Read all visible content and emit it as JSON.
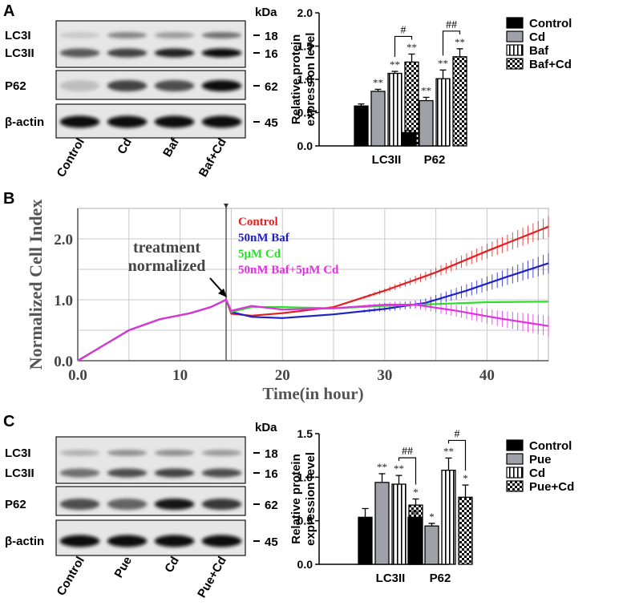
{
  "panel_labels": {
    "a": "A",
    "b": "B",
    "c": "C"
  },
  "colors": {
    "control": "#000000",
    "cd_gray": "#a0a0a8",
    "red": "#e02020",
    "blue": "#2020c8",
    "green": "#28e028",
    "magenta": "#e030e0",
    "grid": "#c8c8c8"
  },
  "blots": {
    "A": {
      "kda_label": "kDa",
      "lanes": [
        "Control",
        "Cd",
        "Baf",
        "Baf+Cd"
      ],
      "proteins": [
        "LC3I",
        "LC3II",
        "P62",
        "β-actin"
      ],
      "markers": [
        "18",
        "16",
        "62",
        "45"
      ],
      "intensities": {
        "LC3I": [
          0.15,
          0.45,
          0.35,
          0.55
        ],
        "LC3II": [
          0.65,
          0.75,
          0.9,
          1.0
        ],
        "P62": [
          0.2,
          0.75,
          0.7,
          1.0
        ],
        "beta_actin": [
          1.0,
          1.0,
          1.0,
          1.0
        ]
      }
    },
    "C": {
      "kda_label": "kDa",
      "lanes": [
        "Control",
        "Pue",
        "Cd",
        "Pue+Cd"
      ],
      "proteins": [
        "LC3I",
        "LC3II",
        "P62",
        "β-actin"
      ],
      "markers": [
        "18",
        "16",
        "62",
        "45"
      ],
      "intensities": {
        "LC3I": [
          0.25,
          0.4,
          0.4,
          0.35
        ],
        "LC3II": [
          0.55,
          0.7,
          0.75,
          0.7
        ],
        "P62": [
          0.7,
          0.6,
          0.95,
          0.8
        ],
        "beta_actin": [
          1.0,
          1.0,
          1.0,
          1.0
        ]
      }
    }
  },
  "chart_data": [
    {
      "id": "A-bar",
      "type": "bar",
      "ylabel": "Relative protein expression level",
      "ylim": [
        0,
        2.0
      ],
      "yticks": [
        "0.0",
        "0.5",
        "1.0",
        "1.5",
        "2.0"
      ],
      "categories": [
        "LC3II",
        "P62"
      ],
      "series": [
        {
          "name": "Control",
          "pattern": "solid-black",
          "values": [
            0.6,
            0.2
          ],
          "errors": [
            0.03,
            0.03
          ],
          "marks": [
            "",
            ""
          ]
        },
        {
          "name": "Cd",
          "pattern": "solid-gray",
          "values": [
            0.82,
            0.68
          ],
          "errors": [
            0.03,
            0.05
          ],
          "marks": [
            "**",
            "**"
          ]
        },
        {
          "name": "Baf",
          "pattern": "vertical-stripes",
          "values": [
            1.09,
            1.01
          ],
          "errors": [
            0.03,
            0.13
          ],
          "marks": [
            "**",
            "**"
          ]
        },
        {
          "name": "Baf+Cd",
          "pattern": "checker",
          "values": [
            1.26,
            1.34
          ],
          "errors": [
            0.12,
            0.12
          ],
          "marks": [
            "**",
            "**"
          ]
        }
      ],
      "brackets": [
        {
          "label": "#"
        },
        {
          "label": "##"
        }
      ]
    },
    {
      "id": "B-line",
      "type": "line",
      "xlabel": "Time(in hour)",
      "ylabel": "Normalized Cell Index",
      "xlim": [
        0,
        46
      ],
      "ylim": [
        0,
        2.5
      ],
      "xticks": [
        "0.0",
        "10",
        "20",
        "30",
        "40"
      ],
      "yticks": [
        "0.0",
        "1.0",
        "2.0"
      ],
      "normalization_time": 14.5,
      "annotation": "treatment normalized",
      "annotation_lines": [
        "treatment",
        "normalized"
      ],
      "series": [
        {
          "name": "Control",
          "points": [
            [
              0,
              0
            ],
            [
              2,
              0.2
            ],
            [
              5,
              0.5
            ],
            [
              8,
              0.68
            ],
            [
              11,
              0.78
            ],
            [
              13,
              0.88
            ],
            [
              14.5,
              1.0
            ],
            [
              15,
              0.77
            ],
            [
              17,
              0.74
            ],
            [
              20,
              0.78
            ],
            [
              25,
              0.88
            ],
            [
              30,
              1.15
            ],
            [
              35,
              1.45
            ],
            [
              40,
              1.8
            ],
            [
              46,
              2.2
            ]
          ]
        },
        {
          "name": "50nM Baf",
          "points": [
            [
              0,
              0
            ],
            [
              2,
              0.2
            ],
            [
              5,
              0.5
            ],
            [
              8,
              0.68
            ],
            [
              11,
              0.78
            ],
            [
              13,
              0.88
            ],
            [
              14.5,
              1.0
            ],
            [
              15,
              0.8
            ],
            [
              17,
              0.72
            ],
            [
              20,
              0.7
            ],
            [
              25,
              0.76
            ],
            [
              30,
              0.85
            ],
            [
              34,
              0.95
            ],
            [
              38,
              1.15
            ],
            [
              42,
              1.38
            ],
            [
              46,
              1.6
            ]
          ]
        },
        {
          "name": "5μM Cd",
          "points": [
            [
              0,
              0
            ],
            [
              2,
              0.2
            ],
            [
              5,
              0.5
            ],
            [
              8,
              0.68
            ],
            [
              11,
              0.78
            ],
            [
              13,
              0.88
            ],
            [
              14.5,
              1.0
            ],
            [
              15,
              0.8
            ],
            [
              17,
              0.88
            ],
            [
              20,
              0.88
            ],
            [
              25,
              0.86
            ],
            [
              30,
              0.9
            ],
            [
              35,
              0.93
            ],
            [
              40,
              0.96
            ],
            [
              46,
              0.97
            ]
          ]
        },
        {
          "name": "50nM Baf+5μM Cd",
          "points": [
            [
              0,
              0
            ],
            [
              2,
              0.2
            ],
            [
              5,
              0.5
            ],
            [
              8,
              0.68
            ],
            [
              11,
              0.78
            ],
            [
              13,
              0.88
            ],
            [
              14.5,
              1.0
            ],
            [
              15,
              0.82
            ],
            [
              17,
              0.9
            ],
            [
              20,
              0.84
            ],
            [
              25,
              0.86
            ],
            [
              30,
              0.92
            ],
            [
              33,
              0.92
            ],
            [
              37,
              0.82
            ],
            [
              41,
              0.7
            ],
            [
              46,
              0.57
            ]
          ]
        }
      ]
    },
    {
      "id": "C-bar",
      "type": "bar",
      "ylabel": "Relative protein expression level",
      "ylim": [
        0,
        1.5
      ],
      "yticks": [
        "0.0",
        "0.5",
        "1.0",
        "1.5"
      ],
      "categories": [
        "LC3II",
        "P62"
      ],
      "series": [
        {
          "name": "Control",
          "pattern": "solid-black",
          "values": [
            0.54,
            0.54
          ],
          "errors": [
            0.1,
            0.07
          ],
          "marks": [
            "",
            ""
          ]
        },
        {
          "name": "Pue",
          "pattern": "solid-gray",
          "values": [
            0.94,
            0.44
          ],
          "errors": [
            0.1,
            0.03
          ],
          "marks": [
            "**",
            "*"
          ]
        },
        {
          "name": "Cd",
          "pattern": "vertical-stripes",
          "values": [
            0.92,
            1.08
          ],
          "errors": [
            0.1,
            0.14
          ],
          "marks": [
            "**",
            "**"
          ]
        },
        {
          "name": "Pue+Cd",
          "pattern": "checker",
          "values": [
            0.68,
            0.77
          ],
          "errors": [
            0.07,
            0.14
          ],
          "marks": [
            "*",
            "*"
          ]
        }
      ],
      "brackets": [
        {
          "label": "##"
        },
        {
          "label": "#"
        }
      ]
    }
  ]
}
